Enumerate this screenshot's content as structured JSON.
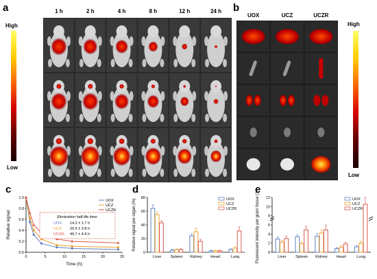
{
  "panels": {
    "a": "a",
    "b": "b",
    "c": "c",
    "d": "d",
    "e": "e"
  },
  "panel_a": {
    "timepoints": [
      "1 h",
      "2 h",
      "4 h",
      "8 h",
      "12 h",
      "24 h"
    ],
    "colorbar": {
      "high": "High",
      "low": "Low"
    }
  },
  "panel_b": {
    "groups": [
      "UOX",
      "UCZ",
      "UCZR"
    ],
    "colorbar": {
      "high": "High",
      "low": "Low"
    }
  },
  "colors": {
    "UOX": "#5b7fbf",
    "UCZ": "#e8a12e",
    "UCZR": "#d9584a"
  },
  "chart_data": [
    {
      "type": "line",
      "panel": "c",
      "xlabel": "Time (h)",
      "ylabel": "Relative signal",
      "xlim": [
        0,
        25
      ],
      "ylim": [
        0,
        1.0
      ],
      "xticks": [
        "0",
        "5",
        "10",
        "15",
        "20",
        "25"
      ],
      "yticks": [
        "0.0",
        "0.2",
        "0.4",
        "0.6",
        "0.8",
        "1.0"
      ],
      "x": [
        0,
        1,
        2,
        4,
        8,
        12,
        24
      ],
      "series": [
        {
          "name": "UOX",
          "values": [
            1.0,
            0.55,
            0.32,
            0.16,
            0.09,
            0.07,
            0.05
          ]
        },
        {
          "name": "UCZ",
          "values": [
            1.0,
            0.62,
            0.4,
            0.24,
            0.13,
            0.11,
            0.09
          ]
        },
        {
          "name": "UCZR",
          "values": [
            1.0,
            0.72,
            0.5,
            0.35,
            0.24,
            0.2,
            0.17
          ]
        }
      ],
      "legend": "top-right",
      "annotation": {
        "title": "Elimination half-life time:",
        "rows": [
          {
            "label": "UOX:",
            "value": "14.2 ± 1.7 h"
          },
          {
            "label": "UCZ:",
            "value": "20.5 ± 3.8 h"
          },
          {
            "label": "UCZR:",
            "value": "49.7 ± 4.9 h"
          }
        ]
      }
    },
    {
      "type": "bar",
      "panel": "d",
      "xlabel": "",
      "ylabel": "Relative signal per organ (%)",
      "ylim": [
        0,
        80
      ],
      "yticks": [
        "0",
        "20",
        "40",
        "60",
        "80"
      ],
      "categories": [
        "Liver",
        "Spleen",
        "Kidney",
        "Heart",
        "Lung"
      ],
      "series": [
        {
          "name": "UOX",
          "values": [
            64,
            3,
            24,
            2,
            4
          ],
          "errors": [
            5,
            1,
            3,
            1,
            1
          ]
        },
        {
          "name": "UCZ",
          "values": [
            55,
            4,
            30,
            2,
            6
          ],
          "errors": [
            4,
            1,
            5,
            1,
            2
          ]
        },
        {
          "name": "UCZR",
          "values": [
            43,
            4,
            16,
            2,
            31
          ],
          "errors": [
            3,
            1,
            3,
            1,
            6
          ]
        }
      ],
      "legend": "top-right"
    },
    {
      "type": "bar",
      "panel": "e",
      "xlabel": "",
      "ylabel": "Fluorescent intensity per gram tissue (10⁸)",
      "ylim": [
        0,
        12
      ],
      "yticks": [
        "0",
        "2",
        "4",
        "6",
        "8",
        "10",
        "12"
      ],
      "categories": [
        "Liver",
        "Spleen",
        "Kidney",
        "Heart",
        "Lung"
      ],
      "series": [
        {
          "name": "UOX",
          "values": [
            2.9,
            3.4,
            3.5,
            0.8,
            1.2
          ],
          "errors": [
            0.5,
            0.4,
            0.6,
            0.2,
            0.3
          ]
        },
        {
          "name": "UCZ",
          "values": [
            2.2,
            1.9,
            4.2,
            1.1,
            2.0
          ],
          "errors": [
            0.4,
            0.4,
            0.7,
            0.3,
            0.4
          ]
        },
        {
          "name": "UCZR",
          "values": [
            3.0,
            4.9,
            4.9,
            1.8,
            10.5
          ],
          "errors": [
            0.5,
            0.8,
            1.0,
            0.4,
            1.5
          ]
        }
      ],
      "legend": "top-right"
    }
  ]
}
